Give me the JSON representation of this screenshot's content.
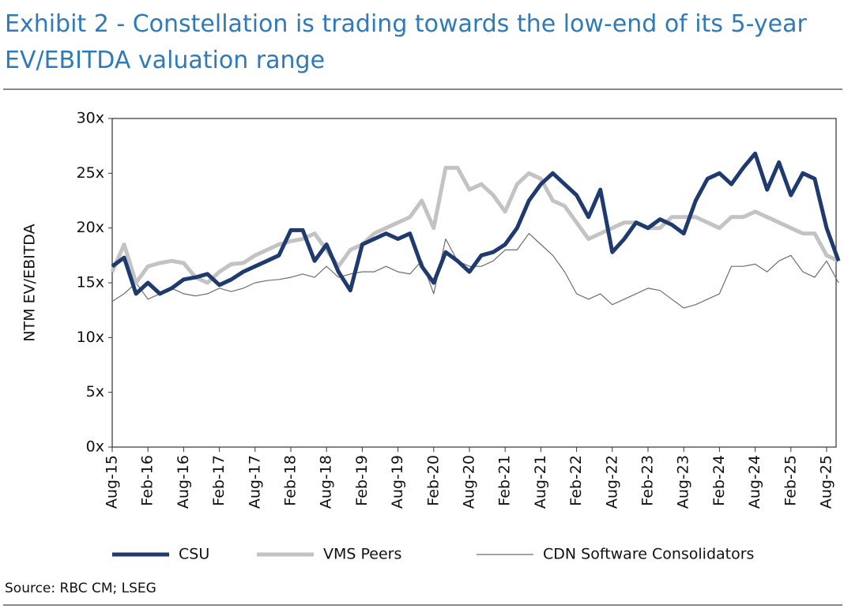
{
  "chart_data": {
    "type": "line",
    "title": "Exhibit 2 - Constellation is trading towards the low-end of its 5-year EV/EBITDA valuation range",
    "y_label": "NTM EV/EBITDA",
    "source": "Source: RBC CM; LSEG",
    "categories": [
      "Aug-15",
      null,
      null,
      "Feb-16",
      null,
      null,
      "Aug-16",
      null,
      null,
      "Feb-17",
      null,
      null,
      "Aug-17",
      null,
      null,
      "Feb-18",
      null,
      null,
      "Aug-18",
      null,
      null,
      "Feb-19",
      null,
      null,
      "Aug-19",
      null,
      null,
      "Feb-20",
      null,
      null,
      "Aug-20",
      null,
      null,
      "Feb-21",
      null,
      null,
      "Aug-21",
      null,
      null,
      "Feb-22",
      null,
      null,
      "Aug-22",
      null,
      null,
      "Feb-23",
      null,
      null,
      "Aug-23",
      null,
      null,
      "Feb-24",
      null,
      null,
      "Aug-24",
      null,
      null,
      "Feb-25",
      null,
      null,
      "Aug-25",
      null
    ],
    "series": [
      {
        "name": "CSU",
        "color": "#1f3a6e",
        "width": 5,
        "values": [
          16.5,
          17.3,
          14,
          15,
          14,
          14.5,
          15.3,
          15.5,
          15.8,
          14.8,
          15.3,
          16,
          16.5,
          17,
          17.5,
          19.8,
          19.8,
          17,
          18.5,
          16,
          14.3,
          18.5,
          19,
          19.5,
          19,
          19.5,
          16.5,
          15,
          17.8,
          17,
          16,
          17.5,
          17.8,
          18.5,
          20,
          22.5,
          24,
          25,
          24,
          23,
          21,
          23.5,
          17.8,
          19,
          20.5,
          20,
          20.8,
          20.3,
          19.5,
          22.5,
          24.5,
          25,
          24,
          25.5,
          26.8,
          23.5,
          26,
          23,
          25,
          24.5,
          20,
          17
        ]
      },
      {
        "name": "VMS Peers",
        "color": "#c3c3c3",
        "width": 5,
        "values": [
          16,
          18.5,
          15,
          16.5,
          16.8,
          17,
          16.8,
          15.5,
          15,
          16,
          16.7,
          16.8,
          17.5,
          18,
          18.5,
          18.8,
          19,
          19.5,
          18,
          16.5,
          18,
          18.5,
          19.5,
          20,
          20.5,
          21,
          22.5,
          20,
          25.5,
          25.5,
          23.5,
          24,
          23,
          21.5,
          24,
          25,
          24.5,
          22.5,
          22,
          20.5,
          19,
          19.5,
          20,
          20.5,
          20.5,
          20,
          20,
          21,
          21,
          21,
          20.5,
          20,
          21,
          21,
          21.5,
          21,
          20.5,
          20,
          19.5,
          19.5,
          17.5,
          17
        ]
      },
      {
        "name": "CDN Software Consolidators",
        "color": "#6e6e6e",
        "width": 1.2,
        "values": [
          13.3,
          14,
          15,
          13.5,
          14,
          14.5,
          14,
          13.8,
          14,
          14.5,
          14.2,
          14.5,
          15,
          15.2,
          15.3,
          15.5,
          15.8,
          15.5,
          16.5,
          15.5,
          15.8,
          16,
          16,
          16.5,
          16,
          15.8,
          17,
          14,
          19,
          17,
          16.5,
          16.5,
          17,
          18,
          18,
          19.5,
          18.5,
          17.5,
          16,
          14,
          13.5,
          14,
          13,
          13.5,
          14,
          14.5,
          14.3,
          13.5,
          12.7,
          13,
          13.5,
          14,
          16.5,
          16.5,
          16.7,
          16,
          17,
          17.5,
          16,
          15.5,
          17,
          15
        ]
      }
    ],
    "ylim": [
      0,
      30
    ],
    "yticks": [
      {
        "value": 0,
        "label": "0x"
      },
      {
        "value": 5,
        "label": "5x"
      },
      {
        "value": 10,
        "label": "10x"
      },
      {
        "value": 15,
        "label": "15x"
      },
      {
        "value": 20,
        "label": "20x"
      },
      {
        "value": 25,
        "label": "25x"
      },
      {
        "value": 30,
        "label": "30x"
      }
    ],
    "grid": false
  }
}
